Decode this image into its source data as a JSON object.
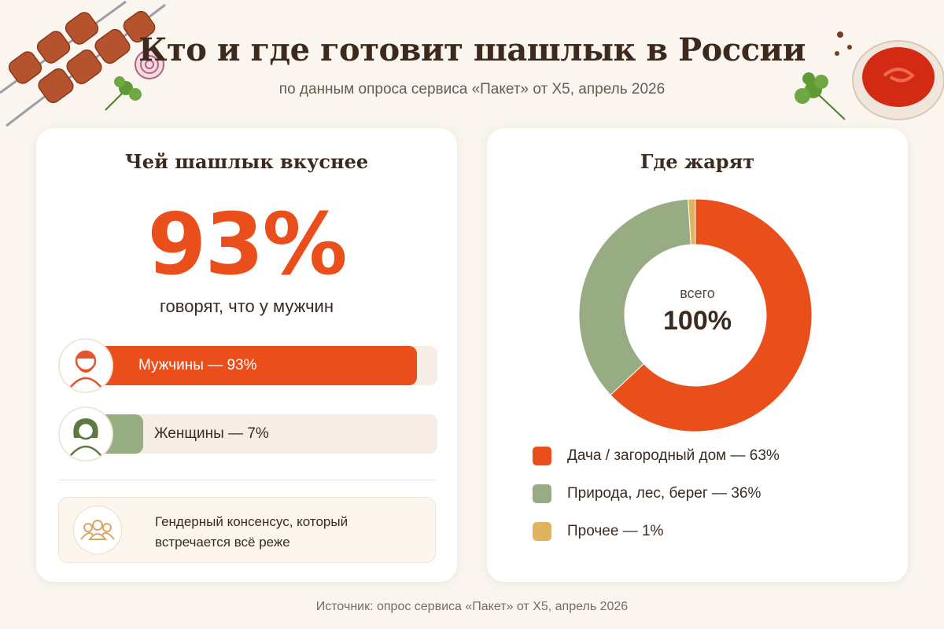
{
  "header": {
    "title": "Кто и где готовит шашлык в России",
    "subtitle": "по данным опроса сервиса «Пакет» от X5, апрель 2026"
  },
  "footer": {
    "source": "Источник: опрос сервиса «Пакет» от X5, апрель 2026"
  },
  "left_card": {
    "title": "Чей шашлык вкуснее",
    "big_value": "93%",
    "big_caption": "говорят, что у мужчин",
    "note": "Гендерный консенсус, который встречается всё реже"
  },
  "right_card": {
    "title": "Где жарят",
    "center_label": "всего",
    "center_value": "100%"
  },
  "colors": {
    "accent_orange": "#ea4e1b",
    "green": "#98ac84",
    "yellow": "#e0b35f",
    "bar_track": "#f6eee4"
  },
  "icons": [
    "skewer-icon",
    "onion-icon",
    "parsley-icon",
    "ketchup-bowl-icon",
    "man-avatar-icon",
    "woman-avatar-icon",
    "group-people-icon"
  ],
  "chart_data": [
    {
      "type": "bar",
      "orientation": "horizontal",
      "title": "Чей шашлык вкуснее",
      "categories": [
        "Мужчины",
        "Женщины"
      ],
      "values": [
        93,
        7
      ],
      "labels": [
        "Мужчины — 93%",
        "Женщины — 7%"
      ],
      "colors": [
        "#ea4e1b",
        "#98ac84"
      ],
      "xlim": [
        0,
        100
      ]
    },
    {
      "type": "pie",
      "donut": true,
      "title": "Где жарят",
      "categories": [
        "Дача / загородный дом",
        "Природа, лес, берег",
        "Прочее"
      ],
      "values": [
        63,
        36,
        1
      ],
      "labels": [
        "Дача / загородный дом — 63%",
        "Природа, лес, берег — 36%",
        "Прочее — 1%"
      ],
      "colors": [
        "#ea4e1b",
        "#98ac84",
        "#e0b35f"
      ],
      "legend": "bottom"
    }
  ]
}
